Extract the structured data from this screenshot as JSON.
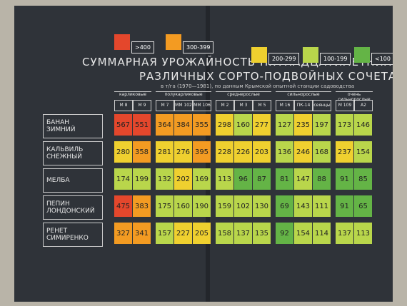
{
  "legend": [
    {
      "label": ">400",
      "color": "#e4472c"
    },
    {
      "label": "300-399",
      "color": "#f39b22"
    },
    {
      "label": "200-299",
      "color": "#efd02f"
    },
    {
      "label": "100-199",
      "color": "#b9d64b"
    },
    {
      "label": "<100",
      "color": "#64b446"
    }
  ],
  "title": [
    "СУММАРНАЯ УРОЖАЙНОСТЬ ПЯТНАДЦАТИЛЕТНИХ НАСАЖДЕНИЙ",
    "РАЗЛИЧНЫХ СОРТО-ПОДВОЙНЫХ СОЧЕТАНИЙ"
  ],
  "subtitle": "в т/га (1970—1981), по данным Крымской опытной станции садоводства",
  "table": {
    "groups": [
      {
        "name": "карликовые",
        "columns": [
          "М 8",
          "М 9"
        ]
      },
      {
        "name": "полукарликовые",
        "columns": [
          "М 7",
          "ММ 102",
          "ММ 106"
        ]
      },
      {
        "name": "среднерослые",
        "columns": [
          "М 2",
          "М 3",
          "М 5"
        ]
      },
      {
        "name": "сильнорослые",
        "columns": [
          "М 16",
          "ПК-14",
          "сеянцы сорт. синапа"
        ]
      },
      {
        "name": "очень сильнорослые",
        "columns": [
          "М 109",
          "А2"
        ]
      }
    ],
    "rows": [
      {
        "name": "БАНАН ЗИМНИЙ",
        "values": [
          567,
          551,
          364,
          384,
          355,
          298,
          160,
          277,
          127,
          235,
          197,
          173,
          146
        ],
        "colors": [
          "#e4472c",
          "#e4472c",
          "#f39b22",
          "#f39b22",
          "#f39b22",
          "#efd02f",
          "#b9d64b",
          "#efd02f",
          "#b9d64b",
          "#efd02f",
          "#b9d64b",
          "#b9d64b",
          "#b9d64b"
        ]
      },
      {
        "name": "КАЛЬВИЛЬ СНЕЖНЫЙ",
        "values": [
          280,
          358,
          281,
          276,
          395,
          228,
          226,
          203,
          136,
          246,
          168,
          237,
          154
        ],
        "colors": [
          "#efd02f",
          "#f39b22",
          "#efd02f",
          "#efd02f",
          "#f39b22",
          "#efd02f",
          "#efd02f",
          "#efd02f",
          "#b9d64b",
          "#efd02f",
          "#b9d64b",
          "#efd02f",
          "#b9d64b"
        ]
      },
      {
        "name": "МЕЛБА",
        "values": [
          174,
          199,
          132,
          202,
          169,
          113,
          96,
          87,
          81,
          147,
          88,
          91,
          85
        ],
        "colors": [
          "#b9d64b",
          "#b9d64b",
          "#b9d64b",
          "#efd02f",
          "#b9d64b",
          "#b9d64b",
          "#64b446",
          "#64b446",
          "#64b446",
          "#b9d64b",
          "#64b446",
          "#64b446",
          "#64b446"
        ]
      },
      {
        "name": "ПЕПИН ЛОНДОНСКИЙ",
        "values": [
          475,
          383,
          175,
          160,
          190,
          159,
          102,
          130,
          69,
          143,
          111,
          91,
          65
        ],
        "colors": [
          "#e4472c",
          "#f39b22",
          "#b9d64b",
          "#b9d64b",
          "#b9d64b",
          "#b9d64b",
          "#b9d64b",
          "#b9d64b",
          "#64b446",
          "#b9d64b",
          "#b9d64b",
          "#64b446",
          "#64b446"
        ]
      },
      {
        "name": "РЕНЕТ СИМИРЕНКО",
        "values": [
          327,
          341,
          157,
          227,
          205,
          158,
          137,
          135,
          92,
          154,
          114,
          137,
          113
        ],
        "colors": [
          "#f39b22",
          "#f39b22",
          "#b9d64b",
          "#efd02f",
          "#efd02f",
          "#b9d64b",
          "#b9d64b",
          "#b9d64b",
          "#64b446",
          "#b9d64b",
          "#b9d64b",
          "#b9d64b",
          "#b9d64b"
        ]
      }
    ]
  }
}
